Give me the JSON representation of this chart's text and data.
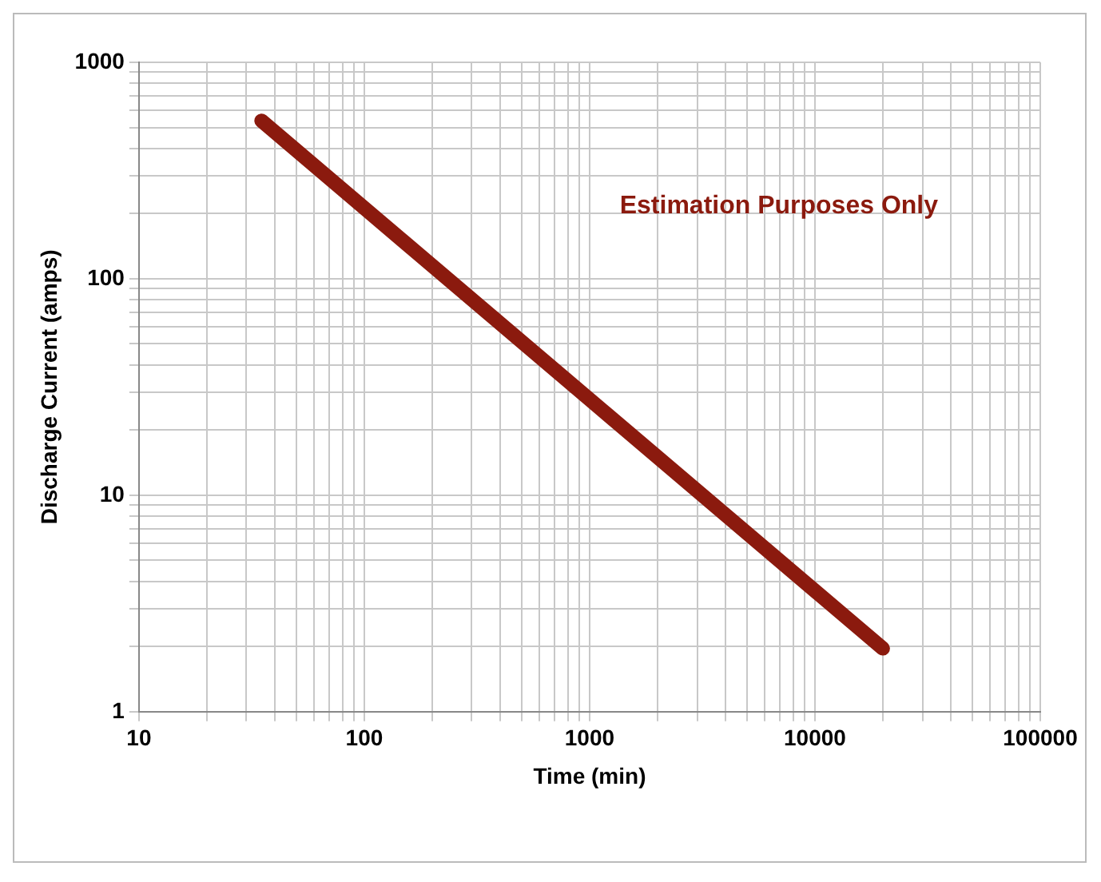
{
  "chart_data": {
    "type": "line",
    "xlabel": "Time (min)",
    "ylabel": "Discharge Current (amps)",
    "annotations": [
      "Estimation Purposes Only"
    ],
    "x": [
      35,
      20000
    ],
    "series": [
      {
        "color": "#8b1a0e",
        "values": [
          537,
          1.96
        ]
      }
    ],
    "log": "xy",
    "grid": true,
    "legend": false,
    "marker": "none",
    "line_style": "solid",
    "xlim": [
      10,
      100000
    ],
    "ylim": [
      1,
      1000
    ],
    "xticks": [
      10,
      {
        "value": 20,
        "label": null
      },
      {
        "value": 30,
        "label": null
      },
      {
        "value": 40,
        "label": null
      },
      {
        "value": 50,
        "label": null
      },
      {
        "value": 60,
        "label": null
      },
      {
        "value": 70,
        "label": null
      },
      {
        "value": 80,
        "label": null
      },
      {
        "value": 90,
        "label": null
      },
      100,
      {
        "value": 200,
        "label": null
      },
      {
        "value": 300,
        "label": null
      },
      {
        "value": 400,
        "label": null
      },
      {
        "value": 500,
        "label": null
      },
      {
        "value": 600,
        "label": null
      },
      {
        "value": 700,
        "label": null
      },
      {
        "value": 800,
        "label": null
      },
      {
        "value": 900,
        "label": null
      },
      1000,
      {
        "value": 2000,
        "label": null
      },
      {
        "value": 3000,
        "label": null
      },
      {
        "value": 4000,
        "label": null
      },
      {
        "value": 5000,
        "label": null
      },
      {
        "value": 6000,
        "label": null
      },
      {
        "value": 7000,
        "label": null
      },
      {
        "value": 8000,
        "label": null
      },
      {
        "value": 9000,
        "label": null
      },
      10000,
      {
        "value": 20000,
        "label": null
      },
      {
        "value": 30000,
        "label": null
      },
      {
        "value": 40000,
        "label": null
      },
      {
        "value": 50000,
        "label": null
      },
      {
        "value": 60000,
        "label": null
      },
      {
        "value": 70000,
        "label": null
      },
      {
        "value": 80000,
        "label": null
      },
      {
        "value": 90000,
        "label": null
      },
      100000
    ],
    "yticks": [
      1,
      {
        "value": 2,
        "label": null
      },
      {
        "value": 3,
        "label": null
      },
      {
        "value": 4,
        "label": null
      },
      {
        "value": 5,
        "label": null
      },
      {
        "value": 6,
        "label": null
      },
      {
        "value": 7,
        "label": null
      },
      {
        "value": 8,
        "label": null
      },
      {
        "value": 9,
        "label": null
      },
      10,
      {
        "value": 20,
        "label": null
      },
      {
        "value": 30,
        "label": null
      },
      {
        "value": 40,
        "label": null
      },
      {
        "value": 50,
        "label": null
      },
      {
        "value": 60,
        "label": null
      },
      {
        "value": 70,
        "label": null
      },
      {
        "value": 80,
        "label": null
      },
      {
        "value": 90,
        "label": null
      },
      100,
      {
        "value": 200,
        "label": null
      },
      {
        "value": 300,
        "label": null
      },
      {
        "value": 400,
        "label": null
      },
      {
        "value": 500,
        "label": null
      },
      {
        "value": 600,
        "label": null
      },
      {
        "value": 700,
        "label": null
      },
      {
        "value": 800,
        "label": null
      },
      {
        "value": 900,
        "label": null
      },
      1000
    ]
  }
}
